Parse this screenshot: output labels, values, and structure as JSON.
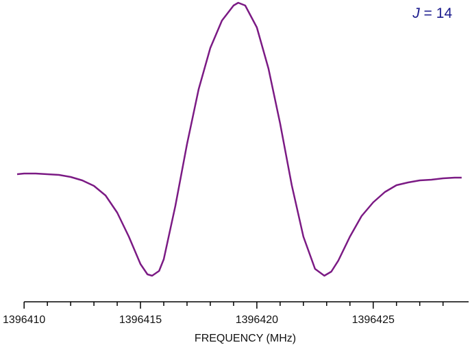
{
  "chart_data": {
    "type": "line",
    "annotation": {
      "symbol": "J",
      "rest": " = 14"
    },
    "x_label": "FREQUENCY  (MHz)",
    "x": [
      1396409.7,
      1396410,
      1396410.5,
      1396411,
      1396411.5,
      1396412,
      1396412.5,
      1396413,
      1396413.5,
      1396414,
      1396414.5,
      1396415,
      1396415.3,
      1396415.5,
      1396415.8,
      1396416,
      1396416.5,
      1396417,
      1396417.5,
      1396418,
      1396418.5,
      1396419,
      1396419.2,
      1396419.5,
      1396420,
      1396420.5,
      1396421,
      1396421.5,
      1396422,
      1396422.5,
      1396422.9,
      1396423.2,
      1396423.5,
      1396424,
      1396424.5,
      1396425,
      1396425.5,
      1396426,
      1396426.5,
      1396427,
      1396427.5,
      1396428,
      1396428.5,
      1396428.8
    ],
    "values": [
      0,
      1,
      1,
      0,
      -1,
      -4,
      -9,
      -17,
      -31,
      -56,
      -91,
      -131,
      -146,
      -148,
      -141,
      -124,
      -46,
      44,
      124,
      184,
      224,
      246,
      250,
      246,
      214,
      154,
      74,
      -16,
      -91,
      -138,
      -148,
      -142,
      -126,
      -91,
      -61,
      -41,
      -26,
      -16,
      -12,
      -9,
      -8,
      -6,
      -5,
      -5
    ],
    "color": "#7b1a84",
    "xlim": [
      1396409.7,
      1396429.1
    ],
    "ylim": [
      -186,
      251
    ],
    "xticks": [
      1396410,
      1396415,
      1396420,
      1396425
    ],
    "xminorticks": [
      1396411,
      1396412,
      1396413,
      1396414,
      1396416,
      1396417,
      1396418,
      1396419,
      1396421,
      1396422,
      1396423,
      1396424,
      1396426,
      1396427,
      1396428
    ],
    "grid": false
  }
}
